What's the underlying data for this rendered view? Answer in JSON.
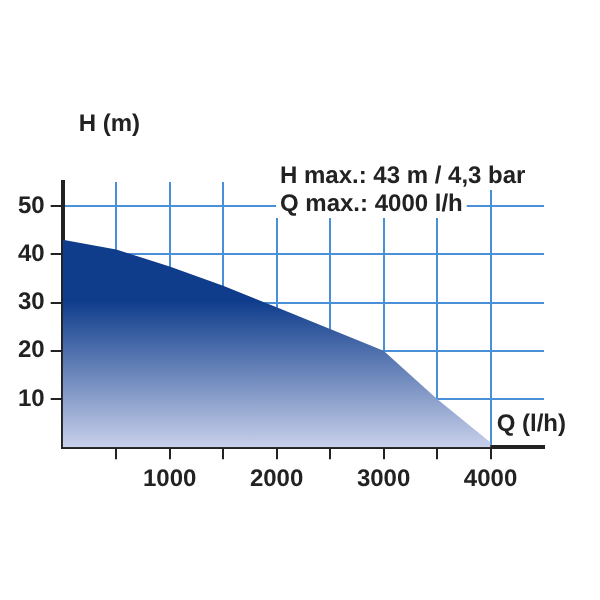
{
  "chart_data": {
    "type": "area",
    "xlabel": "Q (l/h)",
    "ylabel": "H (m)",
    "annotations": [
      "H max.: 43 m / 4,3 bar",
      "Q max.: 4000 l/h"
    ],
    "x": [
      0,
      500,
      1000,
      1500,
      2000,
      2500,
      3000,
      3500,
      4000
    ],
    "series": [
      {
        "color": "#0f3d8c",
        "values": [
          43,
          41,
          37.5,
          33.5,
          29,
          24.5,
          20,
          10,
          1
        ]
      }
    ],
    "xlim": [
      0,
      4500
    ],
    "ylim": [
      0,
      55
    ],
    "xticks": [
      {
        "value": 500,
        "label": null
      },
      1000,
      {
        "value": 1500,
        "label": null
      },
      2000,
      {
        "value": 2500,
        "label": null
      },
      3000,
      {
        "value": 3500,
        "label": null
      },
      4000
    ],
    "yticks": [
      10,
      20,
      30,
      40,
      50
    ],
    "grid": true,
    "legend": false
  }
}
